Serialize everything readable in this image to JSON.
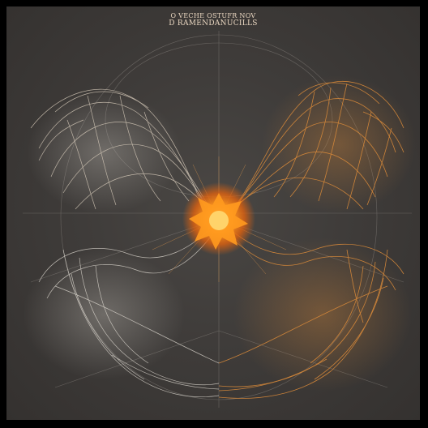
{
  "artwork": {
    "title_line_1": "O VECHE OSTUFR NOV",
    "title_line_2": "D RAMENDANUCILLS",
    "colors": {
      "background": "#3f3c3a",
      "frame": "#000000",
      "orange_mesh": "#d98a3a",
      "white_mesh": "#d9d4cc",
      "core": "#ff8c1a",
      "guide_lines": "#8c8782"
    }
  }
}
